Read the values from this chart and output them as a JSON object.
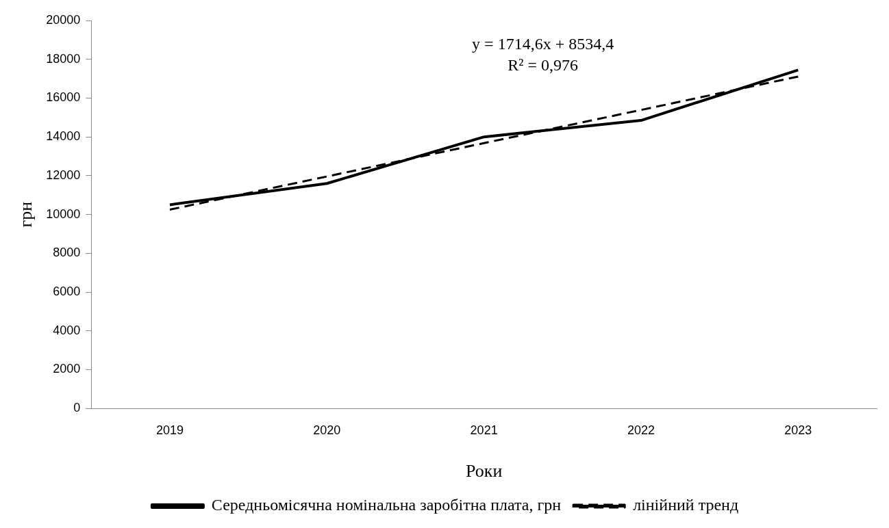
{
  "chart_data": {
    "type": "line",
    "xlabel": "Роки",
    "ylabel": "грн",
    "categories": [
      "2019",
      "2020",
      "2021",
      "2022",
      "2023"
    ],
    "series": [
      {
        "name": "Середньомісячна номінальна заробітна плата, грн",
        "color": "#000000",
        "values": [
          10500,
          11600,
          14000,
          14850,
          17450
        ],
        "line_style": "solid"
      },
      {
        "name": "лінійний тренд",
        "color": "#000000",
        "values": [
          10250,
          11960,
          13680,
          15390,
          17110
        ],
        "line_style": "dashed"
      }
    ],
    "ylim": [
      0,
      20000
    ],
    "yticks": [
      0,
      2000,
      4000,
      6000,
      8000,
      10000,
      12000,
      14000,
      16000,
      18000,
      20000
    ],
    "annotations": [
      "y = 1714,6x + 8534,4",
      "R² = 0,976"
    ],
    "grid": false,
    "legend": "bottom",
    "marker": "none"
  }
}
